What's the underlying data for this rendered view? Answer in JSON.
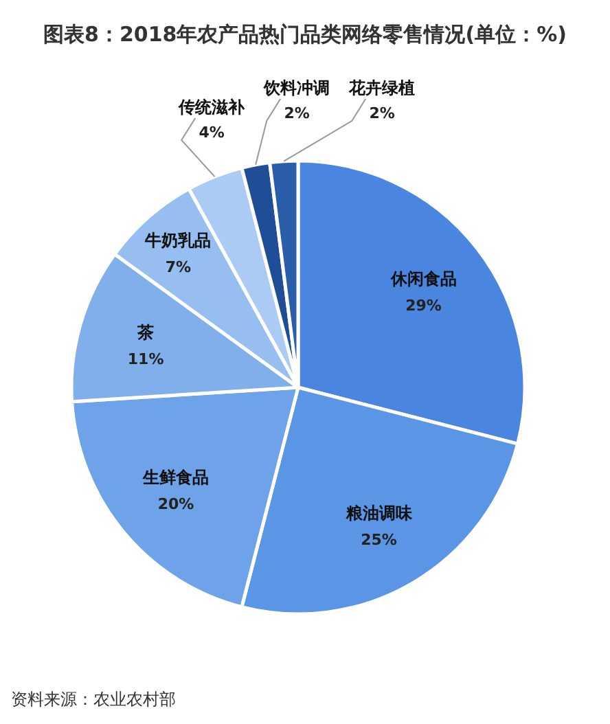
{
  "chart_data": {
    "type": "pie",
    "title": "图表8：2018年农产品热门品类网络零售情况(单位：%)",
    "categories": [
      "休闲食品",
      "粮油调味",
      "生鲜食品",
      "茶",
      "牛奶乳品",
      "传统滋补",
      "饮料冲调",
      "花卉绿植"
    ],
    "values": [
      29,
      25,
      20,
      11,
      7,
      4,
      2,
      2
    ],
    "value_labels": [
      "29%",
      "25%",
      "20%",
      "11%",
      "7%",
      "4%",
      "2%",
      "2%"
    ],
    "colors": [
      "#4a86e0",
      "#5b95e5",
      "#6ea2e9",
      "#80afec",
      "#97bef0",
      "#abcbf4",
      "#1f4e96",
      "#2b5ea9"
    ],
    "annotations": [
      "资料来源：农业农村部"
    ]
  }
}
